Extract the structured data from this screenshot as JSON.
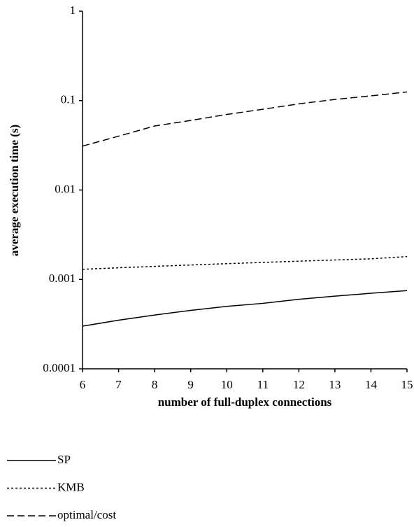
{
  "chart_data": {
    "type": "line",
    "xlabel": "number of full-duplex connections",
    "ylabel": "average execution time (s)",
    "x": [
      6,
      7,
      8,
      9,
      10,
      11,
      12,
      13,
      14,
      15
    ],
    "xlim": [
      6,
      15
    ],
    "xticks": [
      6,
      7,
      8,
      9,
      10,
      11,
      12,
      13,
      14,
      15
    ],
    "ylim": [
      0.0001,
      1
    ],
    "yticks": [
      0.0001,
      0.001,
      0.01,
      0.1,
      1
    ],
    "log_y": true,
    "grid": false,
    "legend": "bottom-left",
    "series": [
      {
        "name": "SP",
        "color": "#000000",
        "line_style": "solid",
        "values": [
          0.0003,
          0.00035,
          0.0004,
          0.00045,
          0.0005,
          0.00054,
          0.0006,
          0.00065,
          0.0007,
          0.00075
        ]
      },
      {
        "name": "KMB",
        "color": "#000000",
        "line_style": "dotted",
        "values": [
          0.0013,
          0.00135,
          0.0014,
          0.00145,
          0.0015,
          0.00155,
          0.0016,
          0.00165,
          0.0017,
          0.0018
        ]
      },
      {
        "name": "optimal/cost",
        "color": "#000000",
        "line_style": "dashed",
        "values": [
          0.031,
          0.04,
          0.052,
          0.06,
          0.07,
          0.08,
          0.092,
          0.103,
          0.113,
          0.125
        ]
      }
    ]
  }
}
